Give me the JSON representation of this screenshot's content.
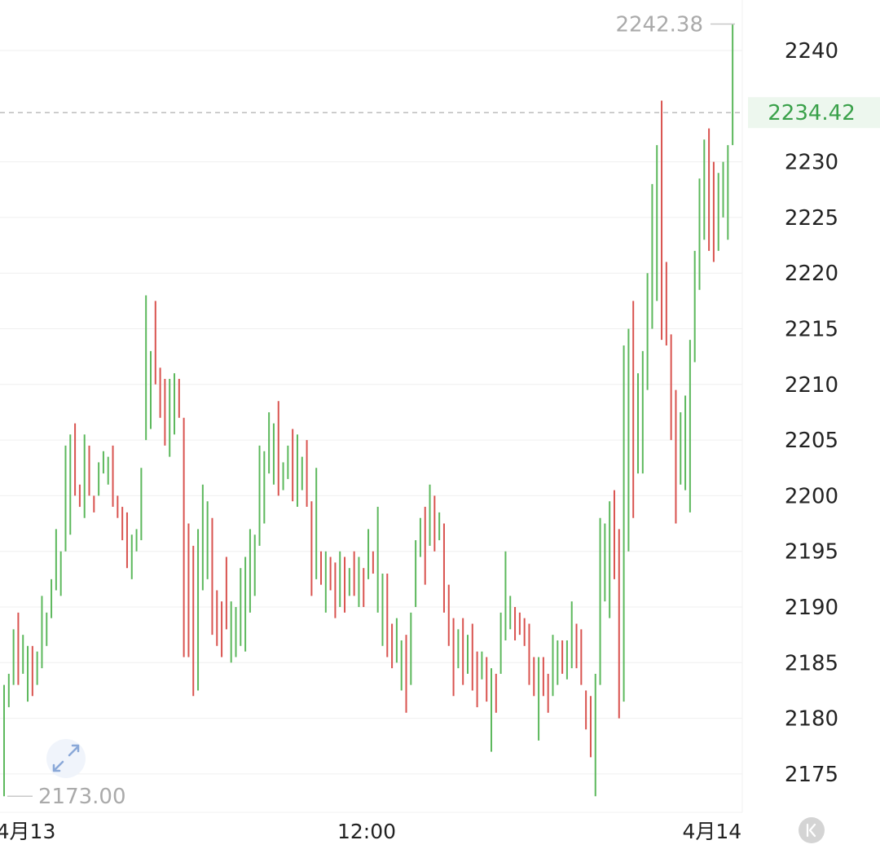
{
  "chart_data": {
    "type": "bar",
    "title": "",
    "xlabel": "",
    "ylabel": "",
    "ylim": [
      2171.5,
      2244.5
    ],
    "grid": true,
    "legend": "none",
    "y_ticks": [
      2240,
      2230,
      2225,
      2220,
      2215,
      2210,
      2205,
      2200,
      2195,
      2190,
      2185,
      2180,
      2175
    ],
    "x_ticks": [
      {
        "label": "4月13",
        "index": 0
      },
      {
        "label": "12:00",
        "index": 72
      },
      {
        "label": "4月14",
        "index": 145
      }
    ],
    "current_price": {
      "label": "2234.42",
      "value": 2234.42
    },
    "high_marker": {
      "label": "2242.38",
      "value": 2242.38
    },
    "low_marker": {
      "label": "2173.00",
      "value": 2173.0
    },
    "colors": {
      "up": "#5cb85c",
      "down": "#d9534f",
      "current": "#3aa14a",
      "grid": "#efefef",
      "axis_text": "#222222",
      "muted_text": "#aaaaaa"
    },
    "bars": [
      {
        "low": 2173,
        "high": 2183,
        "up": true
      },
      {
        "low": 2181,
        "high": 2184,
        "up": true
      },
      {
        "low": 2183,
        "high": 2188,
        "up": true
      },
      {
        "low": 2183,
        "high": 2189.5,
        "up": false
      },
      {
        "low": 2184,
        "high": 2187.5,
        "up": true
      },
      {
        "low": 2181.5,
        "high": 2186.5,
        "up": true
      },
      {
        "low": 2182,
        "high": 2186.5,
        "up": false
      },
      {
        "low": 2183,
        "high": 2186,
        "up": true
      },
      {
        "low": 2184.5,
        "high": 2191,
        "up": true
      },
      {
        "low": 2186.5,
        "high": 2189.5,
        "up": true
      },
      {
        "low": 2189,
        "high": 2192.5,
        "up": true
      },
      {
        "low": 2191.5,
        "high": 2197,
        "up": true
      },
      {
        "low": 2191,
        "high": 2195,
        "up": true
      },
      {
        "low": 2195,
        "high": 2204.5,
        "up": true
      },
      {
        "low": 2196.5,
        "high": 2205.5,
        "up": true
      },
      {
        "low": 2200,
        "high": 2206.5,
        "up": false
      },
      {
        "low": 2199,
        "high": 2201,
        "up": false
      },
      {
        "low": 2198,
        "high": 2205.5,
        "up": true
      },
      {
        "low": 2200,
        "high": 2204.5,
        "up": false
      },
      {
        "low": 2198.5,
        "high": 2200,
        "up": false
      },
      {
        "low": 2200,
        "high": 2203,
        "up": true
      },
      {
        "low": 2202,
        "high": 2204,
        "up": true
      },
      {
        "low": 2201,
        "high": 2203.5,
        "up": true
      },
      {
        "low": 2199,
        "high": 2204.5,
        "up": false
      },
      {
        "low": 2198,
        "high": 2200,
        "up": false
      },
      {
        "low": 2196,
        "high": 2199,
        "up": false
      },
      {
        "low": 2193.5,
        "high": 2198.5,
        "up": false
      },
      {
        "low": 2192.5,
        "high": 2196.5,
        "up": true
      },
      {
        "low": 2195,
        "high": 2197,
        "up": true
      },
      {
        "low": 2196,
        "high": 2202.5,
        "up": true
      },
      {
        "low": 2205,
        "high": 2218,
        "up": true
      },
      {
        "low": 2206,
        "high": 2213,
        "up": true
      },
      {
        "low": 2210,
        "high": 2217.5,
        "up": false
      },
      {
        "low": 2207,
        "high": 2211.5,
        "up": false
      },
      {
        "low": 2204.5,
        "high": 2210.5,
        "up": false
      },
      {
        "low": 2203.5,
        "high": 2210.5,
        "up": true
      },
      {
        "low": 2205.5,
        "high": 2211,
        "up": true
      },
      {
        "low": 2207,
        "high": 2210.5,
        "up": false
      },
      {
        "low": 2185.5,
        "high": 2207,
        "up": false
      },
      {
        "low": 2185.5,
        "high": 2197.5,
        "up": false
      },
      {
        "low": 2182,
        "high": 2195.5,
        "up": false
      },
      {
        "low": 2182.5,
        "high": 2197,
        "up": true
      },
      {
        "low": 2191.5,
        "high": 2201,
        "up": true
      },
      {
        "low": 2192.5,
        "high": 2199.5,
        "up": true
      },
      {
        "low": 2187.5,
        "high": 2198,
        "up": false
      },
      {
        "low": 2186.5,
        "high": 2191.5,
        "up": false
      },
      {
        "low": 2185.5,
        "high": 2190.5,
        "up": false
      },
      {
        "low": 2188,
        "high": 2194.5,
        "up": false
      },
      {
        "low": 2185,
        "high": 2190.5,
        "up": true
      },
      {
        "low": 2185.5,
        "high": 2190,
        "up": true
      },
      {
        "low": 2186.5,
        "high": 2193.5,
        "up": true
      },
      {
        "low": 2186,
        "high": 2194.5,
        "up": true
      },
      {
        "low": 2189.5,
        "high": 2197,
        "up": true
      },
      {
        "low": 2191,
        "high": 2196.5,
        "up": true
      },
      {
        "low": 2195.5,
        "high": 2204.5,
        "up": true
      },
      {
        "low": 2197.5,
        "high": 2204,
        "up": true
      },
      {
        "low": 2202,
        "high": 2207.5,
        "up": true
      },
      {
        "low": 2201,
        "high": 2206.5,
        "up": true
      },
      {
        "low": 2200,
        "high": 2208.5,
        "up": false
      },
      {
        "low": 2200.5,
        "high": 2203,
        "up": true
      },
      {
        "low": 2201.5,
        "high": 2204.5,
        "up": true
      },
      {
        "low": 2199.5,
        "high": 2206,
        "up": false
      },
      {
        "low": 2199,
        "high": 2205.5,
        "up": true
      },
      {
        "low": 2200.5,
        "high": 2203.5,
        "up": true
      },
      {
        "low": 2199,
        "high": 2205,
        "up": false
      },
      {
        "low": 2191,
        "high": 2199.5,
        "up": false
      },
      {
        "low": 2192.5,
        "high": 2202.5,
        "up": true
      },
      {
        "low": 2192,
        "high": 2195,
        "up": false
      },
      {
        "low": 2189.5,
        "high": 2195,
        "up": true
      },
      {
        "low": 2191.5,
        "high": 2194.5,
        "up": false
      },
      {
        "low": 2189,
        "high": 2194,
        "up": false
      },
      {
        "low": 2190,
        "high": 2195,
        "up": true
      },
      {
        "low": 2189.5,
        "high": 2194.5,
        "up": false
      },
      {
        "low": 2191,
        "high": 2193.5,
        "up": true
      },
      {
        "low": 2191,
        "high": 2195,
        "up": false
      },
      {
        "low": 2190,
        "high": 2194.5,
        "up": true
      },
      {
        "low": 2190,
        "high": 2193.5,
        "up": false
      },
      {
        "low": 2192.5,
        "high": 2197,
        "up": true
      },
      {
        "low": 2193,
        "high": 2195,
        "up": false
      },
      {
        "low": 2189.5,
        "high": 2199,
        "up": true
      },
      {
        "low": 2186.5,
        "high": 2193,
        "up": true
      },
      {
        "low": 2185.5,
        "high": 2193,
        "up": false
      },
      {
        "low": 2184.5,
        "high": 2188.5,
        "up": false
      },
      {
        "low": 2185,
        "high": 2189,
        "up": true
      },
      {
        "low": 2182.5,
        "high": 2187,
        "up": true
      },
      {
        "low": 2180.5,
        "high": 2187.5,
        "up": false
      },
      {
        "low": 2183,
        "high": 2189.5,
        "up": true
      },
      {
        "low": 2190,
        "high": 2196,
        "up": true
      },
      {
        "low": 2194.5,
        "high": 2198,
        "up": true
      },
      {
        "low": 2192,
        "high": 2199,
        "up": false
      },
      {
        "low": 2195.5,
        "high": 2201,
        "up": true
      },
      {
        "low": 2195,
        "high": 2200,
        "up": false
      },
      {
        "low": 2196,
        "high": 2198.5,
        "up": true
      },
      {
        "low": 2189.5,
        "high": 2197.5,
        "up": false
      },
      {
        "low": 2186.5,
        "high": 2192,
        "up": false
      },
      {
        "low": 2182,
        "high": 2189,
        "up": false
      },
      {
        "low": 2184.5,
        "high": 2188,
        "up": true
      },
      {
        "low": 2183,
        "high": 2189,
        "up": false
      },
      {
        "low": 2184,
        "high": 2187.5,
        "up": true
      },
      {
        "low": 2182.5,
        "high": 2188.5,
        "up": false
      },
      {
        "low": 2181,
        "high": 2186,
        "up": false
      },
      {
        "low": 2183.5,
        "high": 2186,
        "up": true
      },
      {
        "low": 2181.5,
        "high": 2185.5,
        "up": false
      },
      {
        "low": 2177,
        "high": 2184.5,
        "up": true
      },
      {
        "low": 2180.5,
        "high": 2184,
        "up": false
      },
      {
        "low": 2184,
        "high": 2189.5,
        "up": true
      },
      {
        "low": 2187,
        "high": 2195,
        "up": true
      },
      {
        "low": 2188,
        "high": 2191,
        "up": true
      },
      {
        "low": 2187,
        "high": 2190,
        "up": false
      },
      {
        "low": 2187.5,
        "high": 2189.5,
        "up": false
      },
      {
        "low": 2186.5,
        "high": 2189,
        "up": false
      },
      {
        "low": 2183,
        "high": 2188.5,
        "up": false
      },
      {
        "low": 2182,
        "high": 2185.5,
        "up": false
      },
      {
        "low": 2178,
        "high": 2185.5,
        "up": true
      },
      {
        "low": 2182,
        "high": 2185.5,
        "up": false
      },
      {
        "low": 2180.5,
        "high": 2184,
        "up": false
      },
      {
        "low": 2182,
        "high": 2187.5,
        "up": true
      },
      {
        "low": 2183,
        "high": 2187,
        "up": true
      },
      {
        "low": 2184,
        "high": 2187,
        "up": false
      },
      {
        "low": 2183.5,
        "high": 2187,
        "up": true
      },
      {
        "low": 2184.5,
        "high": 2190.5,
        "up": true
      },
      {
        "low": 2184.5,
        "high": 2188.5,
        "up": false
      },
      {
        "low": 2183,
        "high": 2188,
        "up": false
      },
      {
        "low": 2179,
        "high": 2182.5,
        "up": false
      },
      {
        "low": 2176.5,
        "high": 2182,
        "up": false
      },
      {
        "low": 2173,
        "high": 2184,
        "up": true
      },
      {
        "low": 2183,
        "high": 2198,
        "up": true
      },
      {
        "low": 2190.5,
        "high": 2197.5,
        "up": true
      },
      {
        "low": 2189,
        "high": 2199.5,
        "up": true
      },
      {
        "low": 2192.5,
        "high": 2200.5,
        "up": false
      },
      {
        "low": 2180,
        "high": 2197,
        "up": false
      },
      {
        "low": 2181.5,
        "high": 2213.5,
        "up": true
      },
      {
        "low": 2195,
        "high": 2215,
        "up": true
      },
      {
        "low": 2198,
        "high": 2217.5,
        "up": false
      },
      {
        "low": 2202,
        "high": 2211,
        "up": true
      },
      {
        "low": 2202,
        "high": 2213,
        "up": true
      },
      {
        "low": 2209.5,
        "high": 2220,
        "up": true
      },
      {
        "low": 2215,
        "high": 2228,
        "up": true
      },
      {
        "low": 2217.5,
        "high": 2231.5,
        "up": true
      },
      {
        "low": 2214,
        "high": 2235.5,
        "up": false
      },
      {
        "low": 2213.5,
        "high": 2221,
        "up": false
      },
      {
        "low": 2205,
        "high": 2214.5,
        "up": false
      },
      {
        "low": 2197.5,
        "high": 2209.5,
        "up": false
      },
      {
        "low": 2201,
        "high": 2207.5,
        "up": true
      },
      {
        "low": 2200.5,
        "high": 2209,
        "up": true
      },
      {
        "low": 2198.5,
        "high": 2214,
        "up": true
      },
      {
        "low": 2212,
        "high": 2222,
        "up": true
      },
      {
        "low": 2218.5,
        "high": 2228.5,
        "up": true
      },
      {
        "low": 2223,
        "high": 2232,
        "up": true
      },
      {
        "low": 2222,
        "high": 2233,
        "up": false
      },
      {
        "low": 2221,
        "high": 2230,
        "up": false
      },
      {
        "low": 2222,
        "high": 2229,
        "up": true
      },
      {
        "low": 2225,
        "high": 2230,
        "up": true
      },
      {
        "low": 2223,
        "high": 2231.5,
        "up": true
      },
      {
        "low": 2231.5,
        "high": 2242.38,
        "up": true
      }
    ]
  }
}
